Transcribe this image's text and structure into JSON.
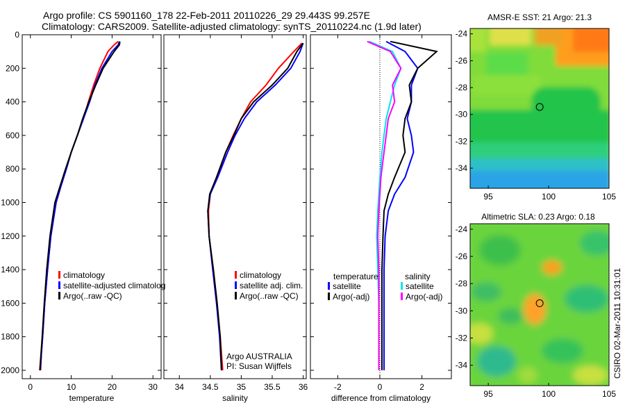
{
  "header": {
    "title_line1": "Argo profile: CS 5901160_178 22-Feb-2011 20110226_29 29.443S 99.257E",
    "title_line2": "Climatology: CARS2009. Satellite-adjusted climatology: synTS_20110224.nc (1.9d later)"
  },
  "footer_stamp": "CSIRO 02-Mar-2011 10:31:01",
  "colors": {
    "climatology": "#ff0000",
    "satellite": "#0000ff",
    "argo": "#000000",
    "cyan": "#00e5ee",
    "magenta": "#ff00ff"
  },
  "chart_data": [
    {
      "type": "line",
      "xlabel": "temperature",
      "xlim": [
        -2,
        32
      ],
      "xticks": [
        "0",
        "10",
        "20",
        "30"
      ],
      "ylim": [
        0,
        2050
      ],
      "yticks": [
        "0",
        "200",
        "400",
        "600",
        "800",
        "1000",
        "1200",
        "1400",
        "1600",
        "1800",
        "2000"
      ],
      "legend": [
        "climatology",
        "satellite-adjusted climatolog",
        "Argo(..raw -QC)"
      ],
      "series": [
        {
          "name": "climatology",
          "color": "#ff0000",
          "x": [
            21.5,
            20.5,
            19,
            17,
            15.5,
            14.2,
            13,
            11.5,
            10,
            8.8,
            7.5,
            6.3,
            5,
            4.2,
            3.5,
            3,
            2.7,
            2.5
          ],
          "y": [
            40,
            60,
            100,
            200,
            300,
            400,
            500,
            600,
            700,
            800,
            900,
            1000,
            1200,
            1400,
            1600,
            1800,
            1900,
            2000
          ]
        },
        {
          "name": "satellite-adjusted climatolog",
          "color": "#0000ff",
          "x": [
            21.8,
            21.5,
            20,
            17.5,
            15.8,
            14.5,
            13,
            11.5,
            10,
            8.8,
            7.5,
            6.3,
            5,
            4.2,
            3.5,
            3,
            2.7,
            2.4
          ],
          "y": [
            40,
            60,
            100,
            200,
            300,
            400,
            500,
            600,
            700,
            800,
            900,
            1000,
            1200,
            1400,
            1600,
            1800,
            1900,
            2000
          ]
        },
        {
          "name": "Argo(..raw -QC)",
          "color": "#000000",
          "x": [
            21.9,
            21.8,
            20.5,
            17.8,
            16,
            14.3,
            12.8,
            11.5,
            10,
            8.6,
            7.3,
            6,
            4.8,
            4,
            3.4,
            2.9,
            2.6,
            2.3
          ],
          "y": [
            40,
            60,
            100,
            200,
            300,
            400,
            500,
            600,
            700,
            800,
            900,
            1000,
            1200,
            1400,
            1600,
            1800,
            1900,
            2000
          ]
        }
      ],
      "annotation_lines": []
    },
    {
      "type": "line",
      "xlabel": "salinity",
      "xlim": [
        33.75,
        36.05
      ],
      "xticks": [
        "34",
        "34.5",
        "35",
        "35.5",
        "36"
      ],
      "ylim": [
        0,
        2050
      ],
      "legend": [
        "climatology",
        "satellite adj. clim.",
        "Argo(..raw -QC)"
      ],
      "annotation_lines": [
        "Argo AUSTRALIA",
        "PI: Susan Wijffels"
      ],
      "series": [
        {
          "name": "climatology",
          "color": "#ff0000",
          "x": [
            35.98,
            35.85,
            35.6,
            35.4,
            35.15,
            35,
            34.87,
            34.75,
            34.6,
            34.5,
            34.47,
            34.48,
            34.54,
            34.6,
            34.66,
            34.7
          ],
          "y": [
            50,
            100,
            200,
            300,
            400,
            500,
            600,
            700,
            850,
            950,
            1050,
            1200,
            1400,
            1600,
            1800,
            2000
          ]
        },
        {
          "name": "satellite adj. clim.",
          "color": "#0000ff",
          "x": [
            36.0,
            35.95,
            35.8,
            35.55,
            35.25,
            35.05,
            34.9,
            34.78,
            34.62,
            34.5,
            34.46,
            34.48,
            34.54,
            34.6,
            34.65,
            34.68
          ],
          "y": [
            50,
            100,
            200,
            300,
            400,
            500,
            600,
            700,
            850,
            950,
            1050,
            1200,
            1400,
            1600,
            1800,
            2000
          ]
        },
        {
          "name": "Argo(..raw -QC)",
          "color": "#000000",
          "x": [
            36.0,
            35.9,
            35.75,
            35.5,
            35.2,
            35.0,
            34.88,
            34.75,
            34.6,
            34.49,
            34.46,
            34.48,
            34.55,
            34.61,
            34.66,
            34.68
          ],
          "y": [
            50,
            100,
            200,
            300,
            400,
            500,
            600,
            700,
            850,
            950,
            1050,
            1200,
            1400,
            1600,
            1800,
            2000
          ]
        }
      ]
    },
    {
      "type": "line",
      "xlabel": "difference from climatology",
      "xlim": [
        -3.3,
        3.4
      ],
      "xticks": [
        "-2",
        "0",
        "2"
      ],
      "ylim": [
        0,
        2050
      ],
      "legend_titles": [
        "temperature",
        "salinity"
      ],
      "legend": [
        "satellite",
        "Argo(-adj)",
        "satellite",
        "Argo(-adj)"
      ],
      "zero_line": true,
      "series": [
        {
          "name": "temperature satellite",
          "color": "#0000ff",
          "x": [
            0.3,
            1.2,
            1.8,
            1.5,
            1.5,
            1.3,
            1.5,
            1.6,
            1.2,
            0.7,
            0.4,
            0.25,
            0.2,
            0.2,
            0.2,
            0.2
          ],
          "y": [
            40,
            100,
            200,
            300,
            400,
            500,
            600,
            700,
            850,
            950,
            1050,
            1200,
            1400,
            1600,
            1800,
            2000
          ]
        },
        {
          "name": "temperature Argo(-adj)",
          "color": "#000000",
          "x": [
            0.5,
            2.7,
            1.8,
            1.4,
            1.5,
            1.2,
            1.1,
            1.2,
            0.7,
            0.4,
            0.2,
            0.15,
            0.1,
            0.1,
            0.1,
            0.1
          ],
          "y": [
            40,
            100,
            200,
            300,
            400,
            500,
            600,
            700,
            850,
            950,
            1050,
            1200,
            1400,
            1600,
            1800,
            2000
          ]
        },
        {
          "name": "salinity satellite",
          "color": "#00e5ee",
          "x": [
            -0.5,
            0.6,
            1.0,
            0.7,
            0.5,
            0.3,
            0.2,
            0.1,
            0.0,
            -0.05,
            -0.1,
            -0.15,
            -0.1,
            -0.05,
            -0.05,
            -0.05
          ],
          "y": [
            40,
            100,
            200,
            300,
            400,
            500,
            600,
            700,
            850,
            950,
            1050,
            1200,
            1400,
            1600,
            1800,
            2000
          ]
        },
        {
          "name": "salinity Argo(-adj)",
          "color": "#ff00ff",
          "x": [
            -0.6,
            0.5,
            1.0,
            0.6,
            0.7,
            0.4,
            0.3,
            0.2,
            0.05,
            0.0,
            -0.05,
            -0.1,
            -0.05,
            -0.05,
            -0.05,
            -0.05
          ],
          "y": [
            40,
            100,
            200,
            300,
            400,
            500,
            600,
            700,
            850,
            950,
            1050,
            1200,
            1400,
            1600,
            1800,
            2000
          ]
        }
      ]
    },
    {
      "type": "heatmap",
      "title": "AMSR-E SST: 21 Argo: 21.3",
      "xlim": [
        93.5,
        105
      ],
      "ylim": [
        -35.5,
        -23.6
      ],
      "xticks": [
        "95",
        "100",
        "105"
      ],
      "yticks": [
        "-24",
        "-26",
        "-28",
        "-30",
        "-32",
        "-34"
      ],
      "marker": {
        "lon": 99.257,
        "lat": -29.443
      }
    },
    {
      "type": "heatmap",
      "title": "Altimetric SLA: 0.23 Argo: 0.18",
      "xlim": [
        93.5,
        105
      ],
      "ylim": [
        -35.5,
        -23.6
      ],
      "xticks": [
        "95",
        "100",
        "105"
      ],
      "yticks": [
        "-24",
        "-26",
        "-28",
        "-30",
        "-32",
        "-34"
      ],
      "marker": {
        "lon": 99.257,
        "lat": -29.443
      }
    }
  ]
}
